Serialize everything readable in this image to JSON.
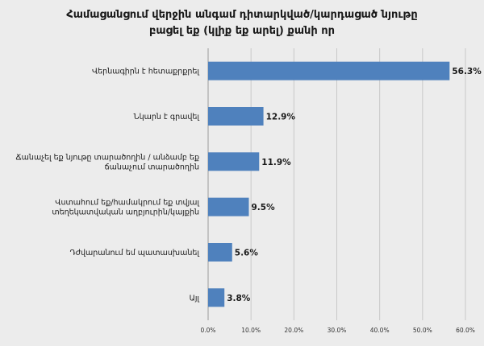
{
  "chart_data": {
    "type": "bar",
    "orientation": "horizontal",
    "title_lines": [
      "Համացանցում վերջին անգամ դիտարկված/կարդացած նյութը",
      "բացել եք (կլիք եք արել) քանի որ"
    ],
    "categories": [
      [
        "Վերնագիրն է հետաքրքրել"
      ],
      [
        "Նկարն է գրավել"
      ],
      [
        "Ճանաչել եք նյութը տարածողին / անձամբ եք",
        "ճանաչում տարածողին"
      ],
      [
        "Վստահում եք/համակրում եք տվյալ",
        "տեղեկատվական աղբյուրին/կայքին"
      ],
      [
        "Դժվարանում եմ պատասխանել"
      ],
      [
        "Այլ"
      ]
    ],
    "values": [
      56.3,
      12.9,
      11.9,
      9.5,
      5.6,
      3.8
    ],
    "value_labels": [
      "56.3%",
      "12.9%",
      "11.9%",
      "9.5%",
      "5.6%",
      "3.8%"
    ],
    "xlim": [
      0,
      60
    ],
    "xticks": [
      0,
      10,
      20,
      30,
      40,
      50,
      60
    ],
    "xtick_labels": [
      "0.0%",
      "10.0%",
      "20.0%",
      "30.0%",
      "40.0%",
      "50.0%",
      "60.0%"
    ],
    "grid": "vertical",
    "legend": "none",
    "colors": {
      "bar": "#4f81bd",
      "gridline": "#c8c8c8",
      "background": "#ececec"
    }
  }
}
